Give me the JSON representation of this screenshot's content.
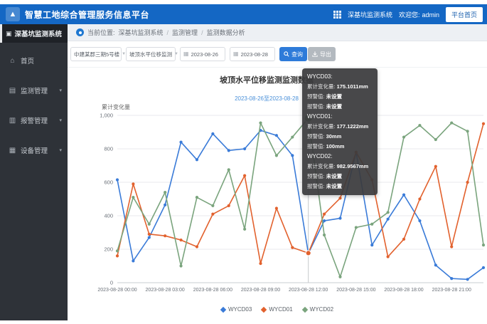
{
  "app": {
    "title": "智慧工地综合管理服务信息平台",
    "system_label": "深基坑监测系统",
    "welcome_label": "欢迎您:",
    "username": "admin",
    "home_button": "平台首页"
  },
  "colors": {
    "header_blue": "#1467c4",
    "accent_blue": "#2e7bd9",
    "series_wycd03": "#3a7bd8",
    "series_wycd01": "#e2612d",
    "series_wycd02": "#7aa47d"
  },
  "sidebar": {
    "system_title": "深基坑监测系统",
    "items": [
      {
        "label": "首页",
        "icon": "home-icon",
        "has_children": false
      },
      {
        "label": "监测管理",
        "icon": "monitor-icon",
        "has_children": true
      },
      {
        "label": "报警管理",
        "icon": "alarm-icon",
        "has_children": true
      },
      {
        "label": "设备管理",
        "icon": "device-icon",
        "has_children": true
      }
    ]
  },
  "breadcrumb": {
    "prefix": "当前位置:",
    "items": [
      "深基坑监测系统",
      "监测管理",
      "监测数据分析"
    ],
    "separator": "/"
  },
  "filters": {
    "project_select": "中建某郡三期5号楼",
    "point_select": "坡顶水平位移监测",
    "date_start": "2023-08-26",
    "date_end": "2023-08-28",
    "query_button": "查询",
    "export_button": "导出"
  },
  "chart_data": {
    "type": "line",
    "title": "坡顶水平位移监测监测数据",
    "subtitle": "2023-08-26至2023-08-28",
    "ylabel": "累计变化量",
    "ylim": [
      0,
      1000
    ],
    "yticks": [
      0,
      200,
      400,
      600,
      800,
      1000
    ],
    "ytick_labels": [
      "0",
      "200",
      "400",
      "600",
      "800",
      "1,000"
    ],
    "x_hours": [
      0,
      1,
      2,
      3,
      4,
      5,
      6,
      7,
      8,
      9,
      10,
      11,
      12,
      13,
      14,
      15,
      16,
      17,
      18,
      19,
      20,
      21,
      22,
      23
    ],
    "x_tick_hours": [
      0,
      3,
      6,
      9,
      12,
      15,
      18,
      21
    ],
    "x_tick_labels": [
      "2023-08-28 00:00",
      "2023-08-28 03:00",
      "2023-08-28 06:00",
      "2023-08-28 09:00",
      "2023-08-28 12:00",
      "2023-08-28 15:00",
      "2023-08-28 18:00",
      "2023-08-28 21:00"
    ],
    "grid": true,
    "legend_position": "bottom",
    "hover_index": 12,
    "series": [
      {
        "name": "WYCD03",
        "color": "#3a7bd8",
        "values": [
          615,
          130,
          270,
          465,
          840,
          735,
          890,
          790,
          800,
          910,
          880,
          760,
          175,
          370,
          385,
          780,
          225,
          380,
          525,
          370,
          105,
          25,
          20,
          90
        ]
      },
      {
        "name": "WYCD01",
        "color": "#e2612d",
        "values": [
          160,
          590,
          290,
          280,
          255,
          215,
          410,
          460,
          640,
          115,
          445,
          210,
          177,
          410,
          505,
          780,
          615,
          155,
          260,
          500,
          695,
          215,
          600,
          950
        ]
      },
      {
        "name": "WYCD02",
        "color": "#7aa47d",
        "values": [
          190,
          510,
          350,
          540,
          100,
          510,
          460,
          675,
          320,
          955,
          760,
          870,
          983,
          285,
          35,
          330,
          350,
          420,
          870,
          940,
          855,
          955,
          905,
          225
        ]
      }
    ]
  },
  "tooltip": {
    "entries": [
      {
        "name": "WYCD03:",
        "rows": [
          [
            "累计变化量:",
            "175.1011mm"
          ],
          [
            "预警值:",
            "未设置"
          ],
          [
            "报警值:",
            "未设置"
          ]
        ]
      },
      {
        "name": "WYCD01:",
        "rows": [
          [
            "累计变化量:",
            "177.1222mm"
          ],
          [
            "预警值:",
            "30mm"
          ],
          [
            "报警值:",
            "100mm"
          ]
        ]
      },
      {
        "name": "WYCD02:",
        "rows": [
          [
            "累计变化量:",
            "982.9567mm"
          ],
          [
            "预警值:",
            "未设置"
          ],
          [
            "报警值:",
            "未设置"
          ]
        ]
      }
    ]
  }
}
